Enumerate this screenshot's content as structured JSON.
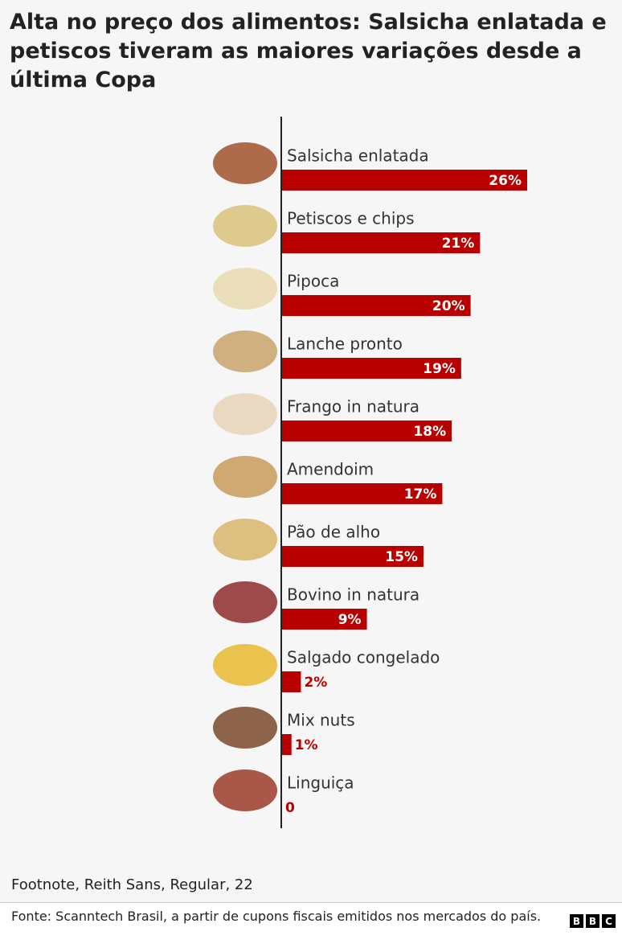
{
  "chart_data": {
    "type": "bar",
    "orientation": "horizontal",
    "title": "Alta no preço dos alimentos: Salsicha enlatada e petiscos tiveram as maiores variações desde a última Copa",
    "categories": [
      "Salsicha enlatada",
      "Petiscos e chips",
      "Pipoca",
      "Lanche pronto",
      "Frango in natura",
      "Amendoim",
      "Pão de alho",
      "Bovino in natura",
      "Salgado congelado",
      "Mix nuts",
      "Linguiça"
    ],
    "values": [
      26,
      21,
      20,
      19,
      18,
      17,
      15,
      9,
      2,
      1,
      0
    ],
    "value_labels": [
      "26%",
      "21%",
      "20%",
      "19%",
      "18%",
      "17%",
      "15%",
      "9%",
      "2%",
      "1%",
      "0"
    ],
    "color": "#b80000",
    "footnote": "Footnote, Reith Sans, Regular, 22",
    "source": "Fonte: Scanntech Brasil, a partir de cupons fiscais emitidos nos mercados do país.",
    "logo": [
      "B",
      "B",
      "C"
    ]
  }
}
